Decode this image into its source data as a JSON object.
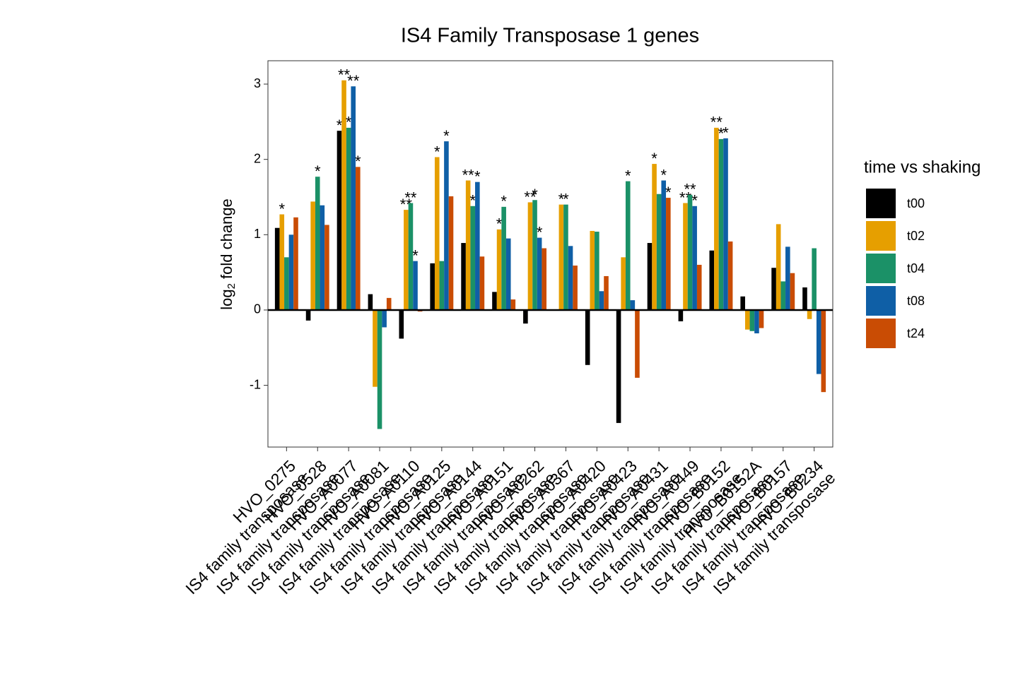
{
  "chart_data": {
    "type": "bar",
    "title": "IS4 Family Transposase 1 genes",
    "ylabel": {
      "main": "log",
      "sub": "2",
      "rest": " fold change"
    },
    "legend_title": "time vs shaking",
    "categories": [
      [
        "HVO_0275",
        "IS4 family transposase"
      ],
      [
        "HVO_0528",
        "IS4 family transposase"
      ],
      [
        "HVO_A0077",
        "IS4 family transposase"
      ],
      [
        "HVO_A0081",
        "IS4 family transposase"
      ],
      [
        "HVO_A0110",
        "IS4 family transposase"
      ],
      [
        "HVO_A0125",
        "IS4 family transposase"
      ],
      [
        "HVO_A0144",
        "IS4 family transposase"
      ],
      [
        "HVO_A0151",
        "IS4 family transposase"
      ],
      [
        "HVO_A0262",
        "IS4 family transposase"
      ],
      [
        "HVO_A0367",
        "IS4 family transposase"
      ],
      [
        "HVO_A0420",
        "IS4 family transposase"
      ],
      [
        "HVO_A0423",
        "IS4 family transposase"
      ],
      [
        "HVO_A0431",
        "IS4 family transposase"
      ],
      [
        "HVO_A0449",
        "IS4 family transposase"
      ],
      [
        "HVO_B0152",
        "IS4 family transposase"
      ],
      [
        "HVO_B0152A",
        "IS4 family transposase"
      ],
      [
        "HVO_B0157",
        "IS4 family transposase"
      ],
      [
        "HVO_B0234",
        "IS4 family transposase"
      ]
    ],
    "series": [
      {
        "name": "t00",
        "color": "#000000",
        "values": [
          1.09,
          -0.14,
          2.38,
          0.21,
          -0.38,
          0.62,
          0.89,
          0.24,
          -0.18,
          0,
          -0.73,
          -1.5,
          0.89,
          -0.15,
          0.79,
          0.18,
          0.56,
          0.3
        ],
        "significance": [
          null,
          null,
          "*",
          null,
          null,
          null,
          null,
          null,
          null,
          null,
          null,
          null,
          null,
          null,
          null,
          null,
          null,
          null
        ]
      },
      {
        "name": "t02",
        "color": "#E69F00",
        "values": [
          1.27,
          1.44,
          3.05,
          -1.02,
          1.33,
          2.03,
          1.72,
          1.07,
          1.43,
          1.4,
          1.05,
          0.7,
          1.94,
          1.42,
          2.42,
          -0.26,
          1.14,
          -0.12
        ],
        "significance": [
          "*",
          null,
          "**",
          null,
          "**",
          "*",
          "**",
          "*",
          "**",
          "*",
          null,
          null,
          "*",
          "**",
          "**",
          null,
          null,
          null
        ]
      },
      {
        "name": "t04",
        "color": "#1B9167",
        "values": [
          0.7,
          1.77,
          2.42,
          -1.58,
          1.42,
          0.65,
          1.38,
          1.37,
          1.46,
          1.4,
          1.04,
          1.71,
          1.54,
          1.53,
          2.27,
          -0.28,
          0.38,
          0.82
        ],
        "significance": [
          null,
          "*",
          "*",
          null,
          "**",
          null,
          "*",
          "*",
          "*",
          "*",
          null,
          "*",
          null,
          "**",
          "*",
          null,
          null,
          null
        ]
      },
      {
        "name": "t08",
        "color": "#0F5FA6",
        "values": [
          1.0,
          1.39,
          2.97,
          -0.23,
          0.65,
          2.24,
          1.7,
          0.95,
          0.96,
          0.85,
          0.25,
          0.13,
          1.72,
          1.38,
          2.28,
          -0.31,
          0.84,
          -0.85
        ],
        "significance": [
          null,
          null,
          "**",
          null,
          "*",
          "*",
          "*",
          null,
          "*",
          null,
          null,
          null,
          "*",
          "*",
          "*",
          null,
          null,
          null
        ]
      },
      {
        "name": "t24",
        "color": "#C94C04",
        "values": [
          1.23,
          1.13,
          1.9,
          0.16,
          -0.02,
          1.51,
          0.71,
          0.14,
          0.82,
          0.59,
          0.45,
          -0.9,
          1.49,
          0.6,
          0.91,
          -0.24,
          0.49,
          -1.09
        ],
        "significance": [
          null,
          null,
          "*",
          null,
          null,
          null,
          null,
          null,
          null,
          null,
          null,
          null,
          "*",
          null,
          null,
          null,
          null,
          null
        ]
      }
    ],
    "ylim": [
      -1.82,
      3.31
    ],
    "yticks": [
      -1,
      0,
      1,
      2,
      3
    ],
    "grid": false
  }
}
